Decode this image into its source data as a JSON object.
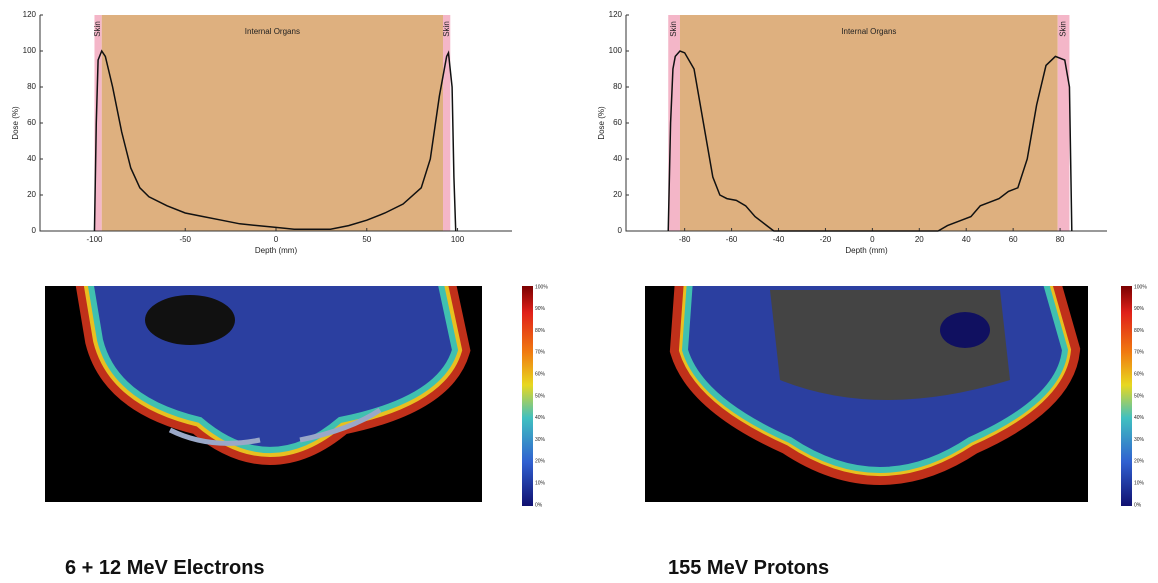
{
  "chart_data": [
    {
      "type": "line",
      "xlabel": "Depth (mm)",
      "ylabel": "Dose (%)",
      "xlim": [
        -130,
        130
      ],
      "xticks": [
        -100,
        -50,
        0,
        50,
        100
      ],
      "ylim": [
        0,
        120
      ],
      "yticks": [
        0,
        20,
        40,
        60,
        80,
        100,
        120
      ],
      "regions": [
        {
          "label": "Skin",
          "from": -100,
          "to": -96,
          "color": "#f4b6c8"
        },
        {
          "label": "Internal Organs",
          "from": -96,
          "to": 92,
          "color": "#deb07f"
        },
        {
          "label": "Skin",
          "from": 92,
          "to": 96,
          "color": "#f4b6c8"
        }
      ],
      "series": [
        {
          "color": "#111111",
          "x": [
            -100,
            -99,
            -98,
            -96,
            -94,
            -90,
            -85,
            -80,
            -75,
            -70,
            -60,
            -50,
            -40,
            -30,
            -20,
            -10,
            0,
            10,
            20,
            30,
            40,
            50,
            60,
            70,
            80,
            85,
            90,
            94,
            95,
            97,
            98,
            99
          ],
          "values": [
            0,
            60,
            95,
            100,
            97,
            80,
            55,
            35,
            24,
            19,
            14,
            10,
            8,
            6,
            4,
            3,
            2,
            1,
            1,
            1,
            3,
            6,
            10,
            15,
            24,
            40,
            75,
            97,
            99,
            80,
            30,
            0
          ]
        }
      ]
    },
    {
      "type": "line",
      "xlabel": "Depth (mm)",
      "ylabel": "Dose (%)",
      "xlim": [
        -105,
        100
      ],
      "xticks": [
        -80,
        -60,
        -40,
        -20,
        0,
        20,
        40,
        60,
        80
      ],
      "ylim": [
        0,
        120
      ],
      "yticks": [
        0,
        20,
        40,
        60,
        80,
        100,
        120
      ],
      "regions": [
        {
          "label": "Skin",
          "from": -87,
          "to": -82,
          "color": "#f4b6c8"
        },
        {
          "label": "Internal Organs",
          "from": -82,
          "to": 79,
          "color": "#deb07f"
        },
        {
          "label": "Skin",
          "from": 79,
          "to": 84,
          "color": "#f4b6c8"
        }
      ],
      "series": [
        {
          "color": "#111111",
          "x": [
            -87,
            -86,
            -85,
            -84,
            -82,
            -80,
            -76,
            -72,
            -68,
            -65,
            -62,
            -58,
            -54,
            -50,
            -45,
            -42,
            28,
            32,
            38,
            42,
            46,
            50,
            54,
            58,
            62,
            66,
            70,
            74,
            78,
            82,
            84,
            85
          ],
          "values": [
            0,
            60,
            90,
            97,
            100,
            99,
            90,
            60,
            30,
            20,
            18,
            17,
            14,
            8,
            3,
            0,
            0,
            3,
            6,
            8,
            14,
            16,
            18,
            22,
            24,
            40,
            70,
            92,
            97,
            95,
            80,
            0
          ]
        }
      ]
    }
  ],
  "panels": [
    {
      "caption": "6 + 12 MeV Electrons",
      "colorbar_labels": [
        "100%",
        "90%",
        "80%",
        "70%",
        "60%",
        "50%",
        "40%",
        "30%",
        "20%",
        "10%",
        "0%"
      ]
    },
    {
      "caption": "155 MeV Protons",
      "colorbar_labels": [
        "100%",
        "90%",
        "80%",
        "70%",
        "60%",
        "50%",
        "40%",
        "30%",
        "20%",
        "10%",
        "0%"
      ]
    }
  ]
}
